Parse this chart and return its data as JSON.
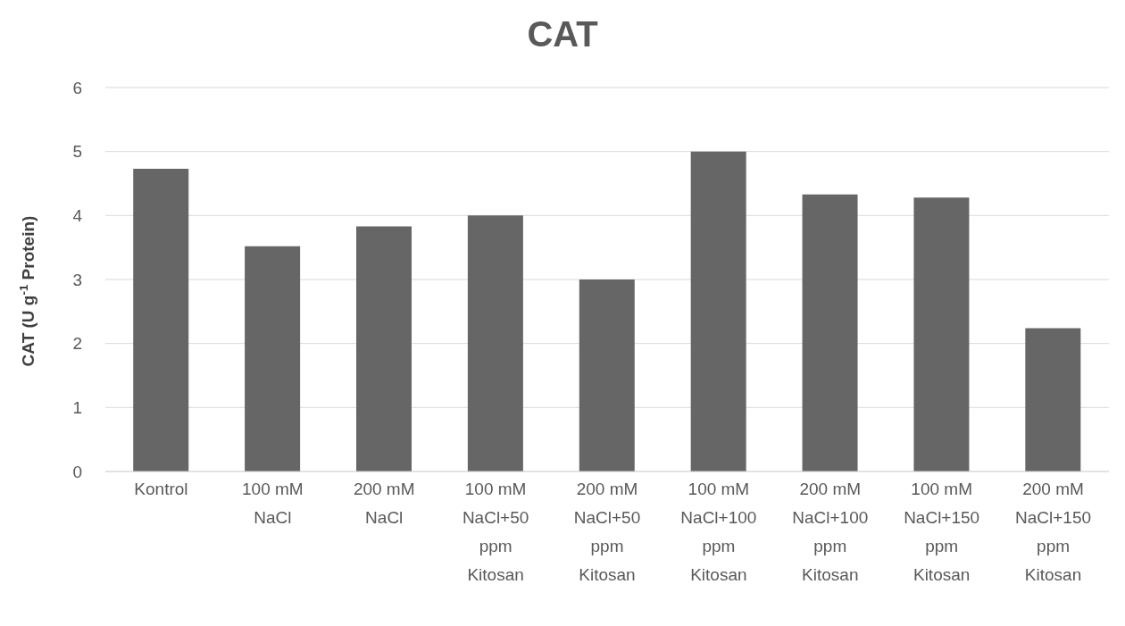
{
  "chart_data": {
    "type": "bar",
    "title": "CAT",
    "ylabel": "CAT (U g$^{-1}$ Protein)",
    "categories": [
      "Kontrol",
      "100 mM NaCl",
      "200 mM NaCl",
      "100 mM NaCl+50 ppm Kitosan",
      "200 mM NaCl+50 ppm Kitosan",
      "100 mM NaCl+100 ppm Kitosan",
      "200 mM NaCl+100 ppm Kitosan",
      "100 mM NaCl+150 ppm Kitosan",
      "200 mM NaCl+150 ppm Kitosan"
    ],
    "values": [
      4.73,
      3.52,
      3.83,
      4.0,
      3.0,
      5.0,
      4.33,
      4.28,
      2.24
    ],
    "color": "#666666",
    "ylim": [
      0,
      6
    ],
    "yticks": [
      0,
      1,
      2,
      3,
      4,
      5,
      6
    ],
    "grid": "y"
  }
}
